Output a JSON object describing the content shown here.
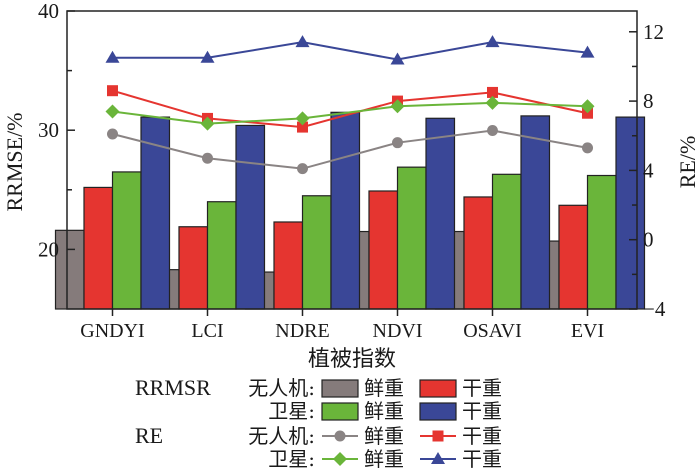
{
  "chart_data": {
    "type": "bar+line",
    "title": "",
    "xlabel": "植被指数",
    "ylabel_left": "RRMSE/%",
    "ylabel_right": "RE/%",
    "categories": [
      "GNDYI",
      "LCI",
      "NDRE",
      "NDVI",
      "OSAVI",
      "EVI"
    ],
    "ylim_left": [
      15,
      40
    ],
    "yticks_left": [
      20,
      30,
      40
    ],
    "ylim_right": [
      -4,
      13.2
    ],
    "yticks_right": [
      -4,
      0,
      4,
      8,
      12
    ],
    "grid": false,
    "bar_series": [
      {
        "name": "RRMSR 无人机 鲜重",
        "color": "#857b7b",
        "values": [
          21.6,
          18.3,
          18.1,
          21.5,
          21.5,
          20.7
        ]
      },
      {
        "name": "RRMSR 无人机 干重",
        "color": "#e53530",
        "values": [
          25.2,
          21.9,
          22.3,
          24.9,
          24.4,
          23.7
        ]
      },
      {
        "name": "RRMSR 卫星 鲜重",
        "color": "#6ab53a",
        "values": [
          26.5,
          24.0,
          24.5,
          26.9,
          26.3,
          26.2
        ]
      },
      {
        "name": "RRMSR 卫星 干重",
        "color": "#3a4797",
        "values": [
          31.1,
          30.4,
          31.5,
          31.0,
          31.2,
          31.1
        ]
      }
    ],
    "line_series": [
      {
        "name": "RE 无人机 鲜重",
        "color": "#8a8484",
        "marker": "circle",
        "values": [
          6.1,
          4.7,
          4.1,
          5.6,
          6.3,
          5.3
        ]
      },
      {
        "name": "RE 无人机 干重",
        "color": "#e53530",
        "marker": "square",
        "values": [
          8.6,
          7.0,
          6.5,
          8.0,
          8.5,
          7.3
        ]
      },
      {
        "name": "RE 卫星 鲜重",
        "color": "#6ab53a",
        "marker": "diamond",
        "values": [
          7.4,
          6.7,
          7.0,
          7.7,
          7.9,
          7.7
        ]
      },
      {
        "name": "RE 卫星 干重",
        "color": "#3a4797",
        "marker": "triangle",
        "values": [
          10.5,
          10.5,
          11.4,
          10.4,
          11.4,
          10.8
        ]
      }
    ],
    "legend": {
      "placement": "bottom",
      "rows": [
        {
          "group": "RRMSR",
          "platform": "无人机:",
          "items": [
            {
              "kind": "bar",
              "color": "#857b7b",
              "label": "鲜重"
            },
            {
              "kind": "bar",
              "color": "#e53530",
              "label": "干重"
            }
          ]
        },
        {
          "group": "",
          "platform": "卫星:",
          "items": [
            {
              "kind": "bar",
              "color": "#6ab53a",
              "label": "鲜重"
            },
            {
              "kind": "bar",
              "color": "#3a4797",
              "label": "干重"
            }
          ]
        },
        {
          "group": "RE",
          "platform": "无人机:",
          "items": [
            {
              "kind": "line",
              "marker": "circle",
              "color": "#8a8484",
              "label": "鲜重"
            },
            {
              "kind": "line",
              "marker": "square",
              "color": "#e53530",
              "label": "干重"
            }
          ]
        },
        {
          "group": "",
          "platform": "卫星:",
          "items": [
            {
              "kind": "line",
              "marker": "diamond",
              "color": "#6ab53a",
              "label": "鲜重"
            },
            {
              "kind": "line",
              "marker": "triangle",
              "color": "#3a4797",
              "label": "干重"
            }
          ]
        }
      ]
    }
  }
}
